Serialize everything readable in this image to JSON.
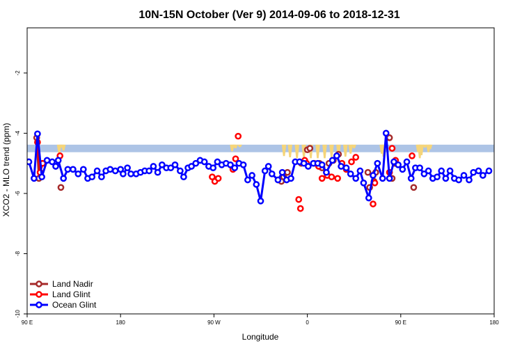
{
  "chart_data": {
    "type": "line",
    "title": "10N-15N October (Ver 9)   2014-09-06 to 2018-12-31",
    "xlabel": "Longitude",
    "ylabel": "XCO2 - MLO trend (ppm)",
    "xlim": [
      -90,
      180
    ],
    "ylim": [
      -10,
      -0.5
    ],
    "xticks": [
      {
        "value": -90,
        "label": "90 E"
      },
      {
        "value": -36,
        "label": "180"
      },
      {
        "value": 18,
        "label": "90 W"
      },
      {
        "value": 72,
        "label": "0"
      },
      {
        "value": 126,
        "label": "90 E"
      },
      {
        "value": 180,
        "label": "180"
      }
    ],
    "yticks": [
      -10,
      -8,
      -6,
      -4,
      -2
    ],
    "grid": false,
    "legend_position": "bottom-left",
    "band": {
      "y_low": -4.63,
      "y_high": -4.38,
      "color": "#adc4e6"
    },
    "land_fill": {
      "color": "#f5d57a",
      "top_y": -4.38,
      "regions": [
        {
          "x": -71.5,
          "depth": 0.3
        },
        {
          "x": -70.2,
          "depth": 0.1
        },
        {
          "x": -69.0,
          "depth": 0.2
        },
        {
          "x": 28.5,
          "depth": 0.22
        },
        {
          "x": 29.5,
          "depth": 0.1
        },
        {
          "x": 30.5,
          "depth": 0.12
        },
        {
          "x": 33.0,
          "depth": 0.08
        },
        {
          "x": 58.5,
          "depth": 0.38
        },
        {
          "x": 62.0,
          "depth": 0.42
        },
        {
          "x": 66.0,
          "depth": 0.45
        },
        {
          "x": 70.0,
          "depth": 0.45
        },
        {
          "x": 74.0,
          "depth": 0.45
        },
        {
          "x": 78.0,
          "depth": 0.45
        },
        {
          "x": 82.0,
          "depth": 0.45
        },
        {
          "x": 86.0,
          "depth": 0.43
        },
        {
          "x": 90.0,
          "depth": 0.4
        },
        {
          "x": 94.0,
          "depth": 0.4
        },
        {
          "x": 97.0,
          "depth": 0.3
        },
        {
          "x": 99.0,
          "depth": 0.12
        },
        {
          "x": 115.0,
          "depth": 0.3
        },
        {
          "x": 116.0,
          "depth": 0.4
        },
        {
          "x": 117.0,
          "depth": 0.18
        },
        {
          "x": 136.0,
          "depth": 0.25
        },
        {
          "x": 137.0,
          "depth": 0.45
        },
        {
          "x": 138.0,
          "depth": 0.35
        },
        {
          "x": 140.0,
          "depth": 0.1
        },
        {
          "x": 142.0,
          "depth": 0.25
        },
        {
          "x": 143.0,
          "depth": 0.15
        }
      ]
    },
    "series": [
      {
        "name": "Land Nadir",
        "color": "#a52a2a",
        "points": [
          [
            -84.5,
            -4.15
          ],
          [
            -83.2,
            -5.5
          ],
          [
            -81.5,
            -5.0
          ]
        ],
        "isolated": [
          [
            -70.5,
            -5.8
          ],
          [
            60.5,
            -5.3
          ],
          [
            57.0,
            -5.6
          ],
          [
            58.3,
            -5.45
          ],
          [
            68.5,
            -5.0
          ],
          [
            72.0,
            -4.55
          ],
          [
            73.5,
            -4.5
          ],
          [
            79.0,
            -5.0
          ],
          [
            80.5,
            -5.15
          ],
          [
            84.5,
            -5.0
          ],
          [
            87.0,
            -4.9
          ],
          [
            90.0,
            -4.7
          ],
          [
            107.0,
            -5.3
          ],
          [
            110.5,
            -5.6
          ],
          [
            111.5,
            -5.3
          ],
          [
            108.0,
            -5.8
          ],
          [
            119.5,
            -4.15
          ],
          [
            121.0,
            -5.5
          ],
          [
            122.5,
            -5.0
          ],
          [
            133.5,
            -5.8
          ]
        ]
      },
      {
        "name": "Land Glint",
        "color": "#ff0000",
        "points": [
          [
            -84.0,
            -4.3
          ],
          [
            -82.5,
            -5.3
          ],
          [
            -81.0,
            -5.0
          ]
        ],
        "isolated": [
          [
            -71.0,
            -4.75
          ],
          [
            17.0,
            -5.45
          ],
          [
            18.5,
            -5.6
          ],
          [
            20.5,
            -5.5
          ],
          [
            29.0,
            -5.2
          ],
          [
            30.5,
            -4.85
          ],
          [
            32.0,
            -4.1
          ],
          [
            67.0,
            -6.2
          ],
          [
            68.0,
            -6.5
          ],
          [
            70.5,
            -4.9
          ],
          [
            71.5,
            -5.0
          ],
          [
            76.0,
            -5.0
          ],
          [
            78.5,
            -5.1
          ],
          [
            80.5,
            -5.5
          ],
          [
            83.5,
            -5.4
          ],
          [
            86.0,
            -5.45
          ],
          [
            89.5,
            -5.5
          ],
          [
            92.0,
            -5.0
          ],
          [
            94.5,
            -5.2
          ],
          [
            97.5,
            -4.95
          ],
          [
            100.0,
            -4.8
          ],
          [
            110.0,
            -6.35
          ],
          [
            111.0,
            -5.65
          ],
          [
            119.5,
            -5.3
          ],
          [
            121.0,
            -4.5
          ],
          [
            123.0,
            -4.9
          ],
          [
            132.5,
            -4.75
          ]
        ]
      },
      {
        "name": "Ocean Glint",
        "color": "#0000ff",
        "points": [
          [
            -89.0,
            -4.95
          ],
          [
            -86.0,
            -5.5
          ],
          [
            -84.0,
            -4.02
          ],
          [
            -81.5,
            -5.45
          ],
          [
            -78.5,
            -4.9
          ],
          [
            -75.5,
            -4.95
          ],
          [
            -73.5,
            -5.1
          ],
          [
            -72.0,
            -4.9
          ],
          [
            -69.0,
            -5.5
          ],
          [
            -66.5,
            -5.2
          ],
          [
            -63.5,
            -5.2
          ],
          [
            -60.5,
            -5.35
          ],
          [
            -57.5,
            -5.2
          ],
          [
            -55.0,
            -5.5
          ],
          [
            -52.5,
            -5.45
          ],
          [
            -49.5,
            -5.25
          ],
          [
            -47.0,
            -5.45
          ],
          [
            -44.5,
            -5.25
          ],
          [
            -42.0,
            -5.2
          ],
          [
            -39.0,
            -5.25
          ],
          [
            -36.0,
            -5.2
          ],
          [
            -34.5,
            -5.35
          ],
          [
            -32.0,
            -5.15
          ],
          [
            -30.0,
            -5.35
          ],
          [
            -27.0,
            -5.35
          ],
          [
            -24.5,
            -5.3
          ],
          [
            -22.0,
            -5.25
          ],
          [
            -19.5,
            -5.25
          ],
          [
            -17.0,
            -5.1
          ],
          [
            -14.5,
            -5.3
          ],
          [
            -12.0,
            -5.05
          ],
          [
            -9.5,
            -5.15
          ],
          [
            -7.0,
            -5.15
          ],
          [
            -4.5,
            -5.05
          ],
          [
            -1.5,
            -5.25
          ],
          [
            0.5,
            -5.45
          ],
          [
            3.0,
            -5.15
          ],
          [
            5.0,
            -5.1
          ],
          [
            7.5,
            -5.0
          ],
          [
            10.0,
            -4.9
          ],
          [
            12.5,
            -4.95
          ],
          [
            15.0,
            -5.1
          ],
          [
            17.5,
            -5.15
          ],
          [
            20.0,
            -4.95
          ],
          [
            22.5,
            -5.05
          ],
          [
            25.0,
            -5.0
          ],
          [
            27.5,
            -5.05
          ],
          [
            30.0,
            -5.15
          ],
          [
            32.5,
            -5.0
          ],
          [
            35.0,
            -5.05
          ],
          [
            37.5,
            -5.55
          ],
          [
            40.0,
            -5.4
          ],
          [
            42.5,
            -5.7
          ],
          [
            45.0,
            -6.25
          ],
          [
            47.5,
            -5.25
          ],
          [
            49.5,
            -5.1
          ],
          [
            51.5,
            -5.35
          ],
          [
            55.0,
            -5.55
          ],
          [
            57.5,
            -5.3
          ],
          [
            60.0,
            -5.55
          ],
          [
            62.5,
            -5.5
          ],
          [
            65.0,
            -4.95
          ],
          [
            67.5,
            -4.95
          ],
          [
            70.0,
            -5.0
          ],
          [
            72.5,
            -5.1
          ],
          [
            75.5,
            -5.0
          ],
          [
            78.0,
            -5.0
          ],
          [
            80.5,
            -5.05
          ],
          [
            83.0,
            -5.3
          ],
          [
            86.5,
            -4.9
          ],
          [
            89.0,
            -4.75
          ],
          [
            91.5,
            -5.1
          ],
          [
            94.5,
            -5.15
          ],
          [
            97.0,
            -5.35
          ],
          [
            100.0,
            -5.5
          ],
          [
            102.5,
            -5.25
          ],
          [
            104.5,
            -5.65
          ],
          [
            107.5,
            -6.15
          ],
          [
            110.0,
            -5.4
          ],
          [
            112.5,
            -5.0
          ],
          [
            115.5,
            -5.5
          ],
          [
            117.5,
            -4.0
          ],
          [
            119.5,
            -5.5
          ],
          [
            122.0,
            -4.95
          ],
          [
            124.5,
            -5.05
          ],
          [
            127.0,
            -5.2
          ],
          [
            129.5,
            -4.95
          ],
          [
            132.0,
            -5.5
          ],
          [
            134.5,
            -5.15
          ],
          [
            137.0,
            -5.15
          ],
          [
            139.5,
            -5.35
          ],
          [
            142.0,
            -5.25
          ],
          [
            144.5,
            -5.5
          ],
          [
            147.0,
            -5.45
          ],
          [
            149.5,
            -5.25
          ],
          [
            152.0,
            -5.5
          ],
          [
            154.5,
            -5.25
          ],
          [
            157.0,
            -5.5
          ],
          [
            159.5,
            -5.55
          ],
          [
            162.5,
            -5.4
          ],
          [
            165.5,
            -5.55
          ],
          [
            168.0,
            -5.3
          ],
          [
            171.0,
            -5.25
          ],
          [
            173.5,
            -5.4
          ],
          [
            177.0,
            -5.25
          ]
        ],
        "isolated": []
      }
    ]
  }
}
